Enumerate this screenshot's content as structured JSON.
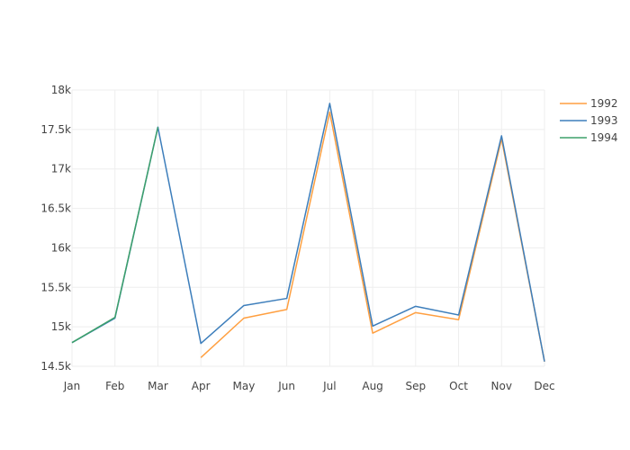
{
  "chart_data": {
    "type": "line",
    "title": "",
    "xlabel": "",
    "ylabel": "",
    "categories": [
      "Jan",
      "Feb",
      "Mar",
      "Apr",
      "May",
      "Jun",
      "Jul",
      "Aug",
      "Sep",
      "Oct",
      "Nov",
      "Dec"
    ],
    "ylim": [
      14500,
      18000
    ],
    "yticks": [
      14500,
      15000,
      15500,
      16000,
      16500,
      17000,
      17500,
      18000
    ],
    "ytick_labels": [
      "14.5k",
      "15k",
      "15.5k",
      "16k",
      "16.5k",
      "17k",
      "17.5k",
      "18k"
    ],
    "grid": true,
    "legend_position": "top-right",
    "series": [
      {
        "name": "1992",
        "color": "#ff9f40",
        "values": [
          null,
          null,
          null,
          14610,
          15110,
          15220,
          17720,
          14920,
          15180,
          15090,
          17380,
          14560
        ]
      },
      {
        "name": "1993",
        "color": "#3d7ebb",
        "values": [
          14800,
          15110,
          17530,
          14790,
          15270,
          15360,
          17830,
          15010,
          15260,
          15150,
          17420,
          14560
        ]
      },
      {
        "name": "1994",
        "color": "#3da06a",
        "values": [
          14800,
          15120,
          17530,
          null,
          null,
          null,
          null,
          null,
          null,
          null,
          null,
          null
        ]
      }
    ]
  }
}
